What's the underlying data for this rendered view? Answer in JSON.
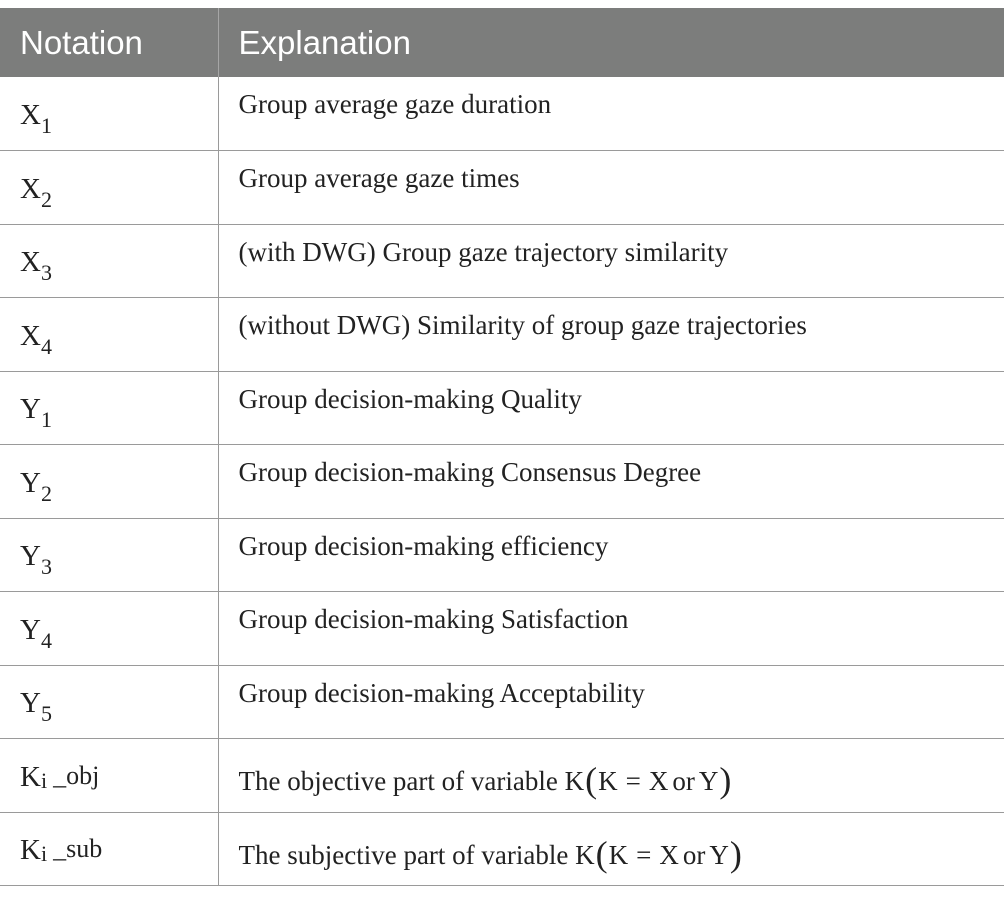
{
  "header": {
    "notation": "Notation",
    "explanation": "Explanation"
  },
  "rows": [
    {
      "base": "X",
      "sub": "1",
      "text": "Group average gaze duration"
    },
    {
      "base": "X",
      "sub": "2",
      "text": "Group average gaze times"
    },
    {
      "base": "X",
      "sub": "3",
      "text": "(with DWG) Group gaze trajectory similarity"
    },
    {
      "base": "X",
      "sub": "4",
      "text": "(without DWG) Similarity of group gaze trajectories"
    },
    {
      "base": "Y",
      "sub": "1",
      "text": "Group decision-making Quality"
    },
    {
      "base": "Y",
      "sub": "2",
      "text": "Group decision-making Consensus Degree"
    },
    {
      "base": "Y",
      "sub": "3",
      "text": "Group decision-making efficiency"
    },
    {
      "base": "Y",
      "sub": "4",
      "text": "Group decision-making Satisfaction"
    },
    {
      "base": "Y",
      "sub": "5",
      "text": "Group decision-making Acceptability"
    },
    {
      "base": "K",
      "sub": "i",
      "suffix": "_obj",
      "text_prefix": "The objective part of variable",
      "formula": {
        "var": "K",
        "open": "(",
        "lhs": "K",
        "eq": "=",
        "a": "X",
        "or": "or",
        "b": "Y",
        "close": ")"
      }
    },
    {
      "base": "K",
      "sub": "i",
      "suffix": "_sub",
      "text_prefix": "The subjective part of variable",
      "formula": {
        "var": "K",
        "open": "(",
        "lhs": "K",
        "eq": "=",
        "a": "X",
        "or": "or",
        "b": "Y",
        "close": ")"
      }
    }
  ]
}
